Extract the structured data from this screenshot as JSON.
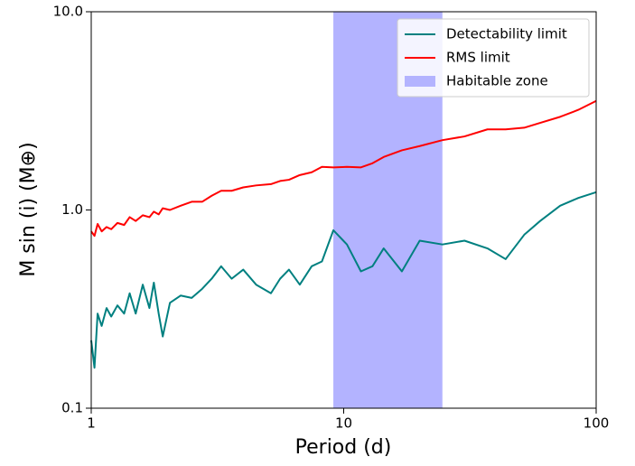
{
  "chart_data": {
    "type": "line",
    "xlabel": "Period (d)",
    "ylabel": "M sin (i) (M⊕)",
    "xscale": "log",
    "yscale": "log",
    "xlim": [
      1,
      100
    ],
    "ylim": [
      0.1,
      10
    ],
    "xticks": [
      1,
      10,
      100
    ],
    "yticks": [
      0.1,
      {
        "value": 1,
        "label": "1.0"
      },
      {
        "value": 10,
        "label": "10.0"
      }
    ],
    "legend": "upper right",
    "x": [
      1,
      1.03,
      1.06,
      1.1,
      1.15,
      1.2,
      1.27,
      1.35,
      1.42,
      1.5,
      1.6,
      1.7,
      1.77,
      1.85,
      1.92,
      2.05,
      2.26,
      2.5,
      2.75,
      3,
      3.27,
      3.6,
      4,
      4.5,
      5.15,
      5.6,
      6.07,
      6.7,
      7.47,
      8.2,
      9.1,
      10.3,
      11.7,
      13,
      14.4,
      17,
      20,
      24.6,
      30.1,
      37.1,
      43.8,
      51.9,
      60,
      72,
      85,
      100
    ],
    "series": [
      {
        "name": "Detectability limit",
        "color": "#008080",
        "values": [
          0.22,
          0.16,
          0.3,
          0.26,
          0.32,
          0.29,
          0.33,
          0.3,
          0.38,
          0.3,
          0.42,
          0.32,
          0.43,
          0.3,
          0.23,
          0.34,
          0.37,
          0.36,
          0.4,
          0.45,
          0.52,
          0.45,
          0.5,
          0.42,
          0.38,
          0.45,
          0.5,
          0.42,
          0.52,
          0.55,
          0.79,
          0.67,
          0.49,
          0.52,
          0.64,
          0.49,
          0.7,
          0.67,
          0.7,
          0.64,
          0.565,
          0.75,
          0.88,
          1.05,
          1.15,
          1.23
        ]
      },
      {
        "name": "RMS limit",
        "color": "#ff0000",
        "values": [
          0.78,
          0.74,
          0.85,
          0.78,
          0.82,
          0.8,
          0.86,
          0.84,
          0.92,
          0.88,
          0.94,
          0.92,
          0.98,
          0.95,
          1.02,
          1.0,
          1.05,
          1.1,
          1.1,
          1.18,
          1.25,
          1.25,
          1.3,
          1.33,
          1.35,
          1.4,
          1.42,
          1.5,
          1.55,
          1.65,
          1.64,
          1.65,
          1.64,
          1.72,
          1.85,
          2.0,
          2.1,
          2.25,
          2.35,
          2.55,
          2.55,
          2.6,
          2.75,
          2.95,
          3.2,
          3.55
        ]
      }
    ],
    "bands": [
      {
        "name": "Habitable zone",
        "color": "#b3b3ff",
        "x": [
          9.1,
          24.6
        ]
      }
    ]
  }
}
